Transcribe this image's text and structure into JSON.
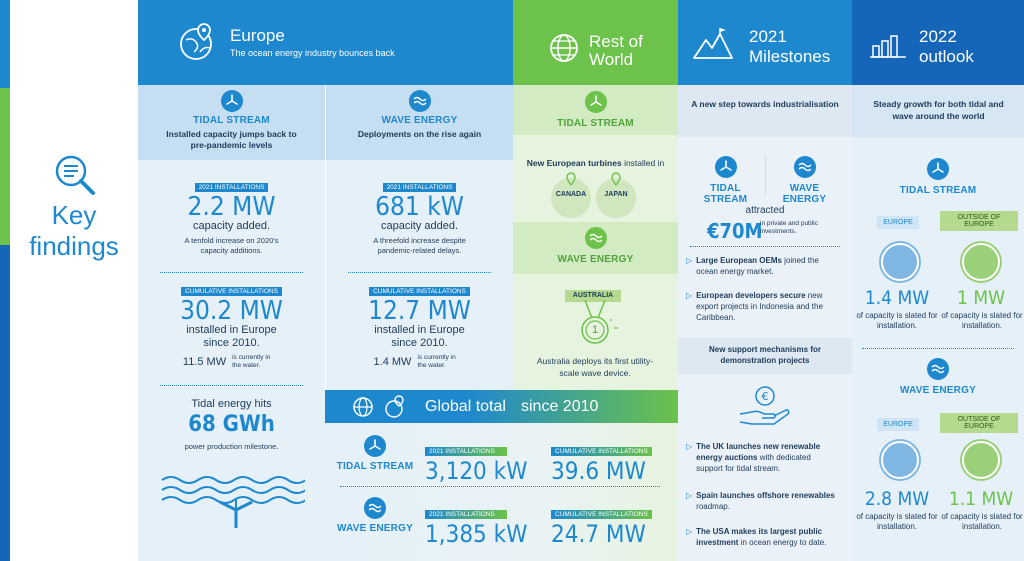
{
  "key": {
    "line1": "Key",
    "line2": "findings"
  },
  "europe": {
    "title": "Europe",
    "subtitle": "The ocean energy industry bounces back",
    "tidal": {
      "title": "TIDAL STREAM",
      "headline": "Installed capacity jumps back to pre-pandemic levels",
      "tag1": "2021 INSTALLATIONS",
      "val1": "2.2 MW",
      "txt1": "capacity added.",
      "note1": "A tenfold increase on 2020's capacity additions.",
      "tag2": "CUMULATIVE INSTALLATIONS",
      "val2": "30.2 MW",
      "txt2": "installed in Europe since 2010.",
      "water_val": "11.5 MW",
      "water_txt": "is currently in the water.",
      "hits": "Tidal energy hits",
      "gwh": "68 GWh",
      "milestone": "power production milestone."
    },
    "wave": {
      "title": "WAVE ENERGY",
      "headline": "Deployments on the rise again",
      "tag1": "2021 INSTALLATIONS",
      "val1": "681 kW",
      "txt1": "capacity added.",
      "note1": "A threefold increase despite pandemic-related delays.",
      "tag2": "CUMULATIVE INSTALLATIONS",
      "val2": "12.7 MW",
      "txt2": "installed in Europe since 2010.",
      "water_val": "1.4 MW",
      "water_txt": "is currently in the water."
    }
  },
  "global": {
    "title": "Global total",
    "since": "since 2010",
    "tidal_label": "TIDAL STREAM",
    "wave_label": "WAVE ENERGY",
    "tag_inst": "2021 INSTALLATIONS",
    "tag_cum": "CUMULATIVE INSTALLATIONS",
    "tidal_inst": "3,120 kW",
    "tidal_cum": "39.6 MW",
    "wave_inst": "1,385 kW",
    "wave_cum": "24.7 MW"
  },
  "row": {
    "title1": "Rest of",
    "title2": "World",
    "tidal": "TIDAL STREAM",
    "turbines_a": "New European turbines",
    "turbines_b": "installed in",
    "c1": "CANADA",
    "c2": "JAPAN",
    "wave": "WAVE ENERGY",
    "aus": "AUSTRALIA",
    "medal": "1",
    "aus_txt": "Australia deploys its first utility-scale wave device."
  },
  "milestones": {
    "title1": "2021",
    "title2": "Milestones",
    "head": "A new step towards industrialisation",
    "tidal": "TIDAL STREAM",
    "wave": "WAVE ENERGY",
    "attracted": "attracted",
    "amount": "€70M",
    "amount_txt": "in private and public investments.",
    "b1a": "Large European OEMs",
    "b1b": " joined the ocean energy market.",
    "b2a": "European developers secure",
    "b2b": " new export projects in Indonesia and the Caribbean.",
    "support": "New support mechanisms for demonstration projects",
    "b3a": "The UK launches new renewable energy auctions",
    "b3b": " with dedicated support for tidal stream.",
    "b4a": "Spain launches offshore renewables",
    "b4b": " roadmap.",
    "b5a": "The USA makes its largest public investment",
    "b5b": " in ocean energy to date."
  },
  "outlook": {
    "title1": "2022",
    "title2": "outlook",
    "head": "Steady growth for both tidal and wave around the world",
    "tidal": "TIDAL STREAM",
    "wave": "WAVE ENERGY",
    "eu": "EUROPE",
    "out": "OUTSIDE OF EUROPE",
    "t_eu": "1.4 MW",
    "t_out": "1 MW",
    "w_eu": "2.8 MW",
    "w_out": "1.1 MW",
    "slated": "of capacity is slated for installation."
  },
  "colors": {
    "blue": "#1e88cf",
    "green": "#6cc24a",
    "dark": "#1d3b5a",
    "navy": "#1565b8"
  }
}
